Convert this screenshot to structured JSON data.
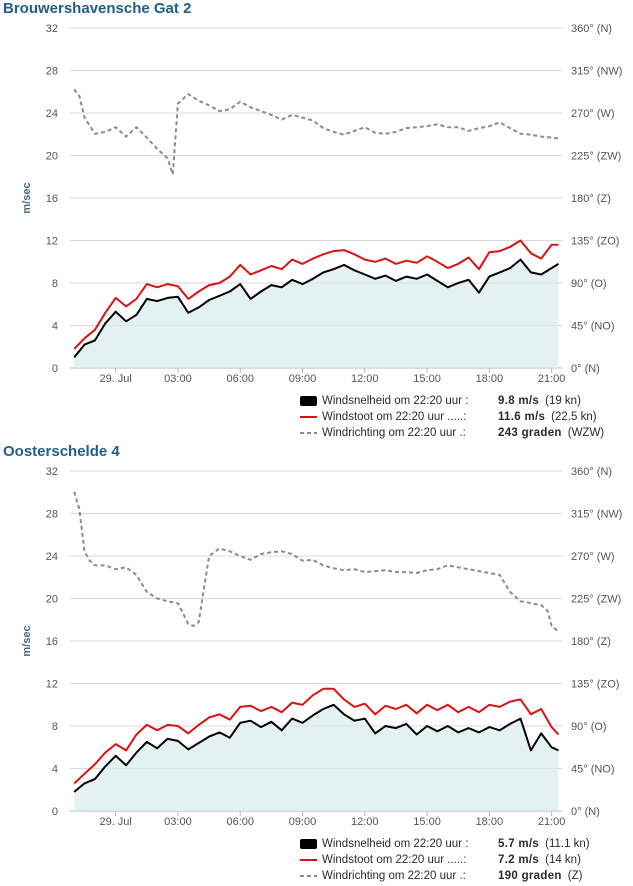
{
  "chart_data": [
    {
      "type": "line",
      "title": "Brouwershavensche Gat 2",
      "ylabel": "m/sec",
      "ylim": [
        0,
        32
      ],
      "yticks": [
        "0",
        "4",
        "8",
        "12",
        "16",
        "20",
        "24",
        "28",
        "32"
      ],
      "y2lim": [
        0,
        360
      ],
      "y2ticks": [
        "0° (N)",
        "45° (NO)",
        "90° (O)",
        "135° (ZO)",
        "180° (Z)",
        "225° (ZW)",
        "270° (W)",
        "315° (NW)",
        "360° (N)"
      ],
      "xlim": [
        -1.2,
        22.5
      ],
      "xticks": [
        {
          "x": 1,
          "label": "29. Jul"
        },
        {
          "x": 4,
          "label": "03:00"
        },
        {
          "x": 7,
          "label": "06:00"
        },
        {
          "x": 10,
          "label": "09:00"
        },
        {
          "x": 13,
          "label": "12:00"
        },
        {
          "x": 16,
          "label": "15:00"
        },
        {
          "x": 19,
          "label": "18:00"
        },
        {
          "x": 22,
          "label": "21:00"
        }
      ],
      "grid": true,
      "series": [
        {
          "name": "Windsnelheid",
          "axis": "y",
          "color": "#000000",
          "dash": "none",
          "area": true,
          "x": [
            -1,
            -0.5,
            0,
            0.5,
            1,
            1.5,
            2,
            2.5,
            3,
            3.5,
            4,
            4.5,
            5,
            5.5,
            6,
            6.5,
            7,
            7.5,
            8,
            8.5,
            9,
            9.5,
            10,
            10.5,
            11,
            11.5,
            12,
            12.5,
            13,
            13.5,
            14,
            14.5,
            15,
            15.5,
            16,
            16.5,
            17,
            17.5,
            18,
            18.5,
            19,
            19.5,
            20,
            20.5,
            21,
            21.5,
            22,
            22.33
          ],
          "y": [
            1.0,
            2.2,
            2.6,
            4.2,
            5.3,
            4.4,
            5.0,
            6.5,
            6.3,
            6.6,
            6.7,
            5.2,
            5.7,
            6.4,
            6.8,
            7.2,
            7.9,
            6.5,
            7.2,
            7.8,
            7.6,
            8.3,
            7.9,
            8.4,
            9.0,
            9.3,
            9.7,
            9.2,
            8.8,
            8.4,
            8.7,
            8.2,
            8.6,
            8.4,
            8.8,
            8.2,
            7.6,
            8.0,
            8.3,
            7.1,
            8.6,
            9.0,
            9.4,
            10.2,
            9.0,
            8.8,
            9.4,
            9.8
          ]
        },
        {
          "name": "Windstoot",
          "axis": "y",
          "color": "#dd1111",
          "dash": "none",
          "area": false,
          "x": [
            -1,
            -0.5,
            0,
            0.5,
            1,
            1.5,
            2,
            2.5,
            3,
            3.5,
            4,
            4.5,
            5,
            5.5,
            6,
            6.5,
            7,
            7.5,
            8,
            8.5,
            9,
            9.5,
            10,
            10.5,
            11,
            11.5,
            12,
            12.5,
            13,
            13.5,
            14,
            14.5,
            15,
            15.5,
            16,
            16.5,
            17,
            17.5,
            18,
            18.5,
            19,
            19.5,
            20,
            20.5,
            21,
            21.5,
            22,
            22.33
          ],
          "y": [
            1.8,
            2.8,
            3.6,
            5.2,
            6.6,
            5.8,
            6.5,
            7.9,
            7.6,
            7.9,
            7.7,
            6.5,
            7.2,
            7.8,
            8.0,
            8.6,
            9.7,
            8.8,
            9.2,
            9.6,
            9.3,
            10.2,
            9.8,
            10.3,
            10.7,
            11.0,
            11.1,
            10.7,
            10.2,
            10.0,
            10.3,
            9.8,
            10.1,
            9.9,
            10.5,
            10.0,
            9.4,
            9.8,
            10.4,
            9.3,
            10.9,
            11.0,
            11.4,
            12.0,
            10.8,
            10.3,
            11.6,
            11.6
          ]
        },
        {
          "name": "Windrichting",
          "axis": "y2",
          "color": "#8c8c8c",
          "dash": "4,3",
          "area": false,
          "x": [
            -1,
            -0.75,
            -0.5,
            0,
            0.5,
            1,
            1.5,
            2,
            2.5,
            3,
            3.5,
            3.75,
            4,
            4.25,
            4.5,
            5,
            5.5,
            6,
            6.5,
            7,
            7.5,
            8,
            8.5,
            9,
            9.5,
            10,
            10.5,
            11,
            11.5,
            12,
            12.5,
            13,
            13.5,
            14,
            14.5,
            15,
            15.5,
            16,
            16.5,
            17,
            17.5,
            18,
            18.5,
            19,
            19.5,
            20,
            20.5,
            21,
            21.5,
            22,
            22.33
          ],
          "y": [
            295,
            288,
            265,
            248,
            250,
            255,
            245,
            255,
            244,
            232,
            222,
            205,
            280,
            285,
            290,
            283,
            278,
            272,
            274,
            282,
            276,
            272,
            268,
            263,
            268,
            265,
            262,
            254,
            250,
            247,
            251,
            255,
            249,
            248,
            250,
            254,
            255,
            256,
            258,
            255,
            255,
            251,
            254,
            256,
            260,
            254,
            248,
            247,
            245,
            244,
            243
          ]
        }
      ],
      "legend": [
        {
          "label": "Windsnelheid om 22:20 uur :",
          "value": "9.8 m/s",
          "extra": "(19 kn)"
        },
        {
          "label": "Windstoot om 22:20 uur .....:",
          "value": "11.6 m/s",
          "extra": "(22.5 kn)"
        },
        {
          "label": "Windrichting om 22:20 uur .:",
          "value": "243 graden",
          "extra": "(WZW)"
        }
      ]
    },
    {
      "type": "line",
      "title": "Oosterschelde 4",
      "ylabel": "m/sec",
      "ylim": [
        0,
        32
      ],
      "yticks": [
        "0",
        "4",
        "8",
        "12",
        "16",
        "20",
        "24",
        "28",
        "32"
      ],
      "y2lim": [
        0,
        360
      ],
      "y2ticks": [
        "0° (N)",
        "45° (NO)",
        "90° (O)",
        "135° (ZO)",
        "180° (Z)",
        "225° (ZW)",
        "270° (W)",
        "315° (NW)",
        "360° (N)"
      ],
      "xlim": [
        -1.2,
        22.5
      ],
      "xticks": [
        {
          "x": 1,
          "label": "29. Jul"
        },
        {
          "x": 4,
          "label": "03:00"
        },
        {
          "x": 7,
          "label": "06:00"
        },
        {
          "x": 10,
          "label": "09:00"
        },
        {
          "x": 13,
          "label": "12:00"
        },
        {
          "x": 16,
          "label": "15:00"
        },
        {
          "x": 19,
          "label": "18:00"
        },
        {
          "x": 22,
          "label": "21:00"
        }
      ],
      "grid": true,
      "series": [
        {
          "name": "Windsnelheid",
          "axis": "y",
          "color": "#000000",
          "dash": "none",
          "area": true,
          "x": [
            -1,
            -0.5,
            0,
            0.5,
            1,
            1.5,
            2,
            2.5,
            3,
            3.5,
            4,
            4.5,
            5,
            5.5,
            6,
            6.5,
            7,
            7.5,
            8,
            8.5,
            9,
            9.5,
            10,
            10.5,
            11,
            11.5,
            12,
            12.5,
            13,
            13.5,
            14,
            14.5,
            15,
            15.5,
            16,
            16.5,
            17,
            17.5,
            18,
            18.5,
            19,
            19.5,
            20,
            20.5,
            21,
            21.5,
            22,
            22.33
          ],
          "y": [
            1.8,
            2.6,
            3.0,
            4.2,
            5.2,
            4.3,
            5.5,
            6.5,
            5.9,
            6.8,
            6.6,
            5.8,
            6.4,
            7.0,
            7.4,
            6.9,
            8.3,
            8.5,
            7.9,
            8.4,
            7.6,
            8.7,
            8.3,
            9.0,
            9.6,
            10.0,
            9.1,
            8.5,
            8.7,
            7.3,
            8.0,
            7.8,
            8.2,
            7.2,
            8.0,
            7.5,
            8.0,
            7.4,
            7.8,
            7.4,
            7.9,
            7.6,
            8.2,
            8.7,
            5.7,
            7.3,
            6.0,
            5.7
          ]
        },
        {
          "name": "Windstoot",
          "axis": "y",
          "color": "#dd1111",
          "dash": "none",
          "area": false,
          "x": [
            -1,
            -0.5,
            0,
            0.5,
            1,
            1.5,
            2,
            2.5,
            3,
            3.5,
            4,
            4.5,
            5,
            5.5,
            6,
            6.5,
            7,
            7.5,
            8,
            8.5,
            9,
            9.5,
            10,
            10.5,
            11,
            11.5,
            12,
            12.5,
            13,
            13.5,
            14,
            14.5,
            15,
            15.5,
            16,
            16.5,
            17,
            17.5,
            18,
            18.5,
            19,
            19.5,
            20,
            20.5,
            21,
            21.5,
            22,
            22.33
          ],
          "y": [
            2.6,
            3.5,
            4.4,
            5.5,
            6.3,
            5.7,
            7.2,
            8.1,
            7.6,
            8.1,
            8.0,
            7.3,
            8.1,
            8.8,
            9.1,
            8.6,
            9.8,
            9.9,
            9.4,
            9.8,
            9.3,
            10.2,
            10.0,
            10.9,
            11.5,
            11.5,
            10.5,
            9.8,
            10.1,
            9.1,
            9.9,
            9.6,
            10.0,
            9.2,
            10.0,
            9.5,
            10.0,
            9.3,
            9.8,
            9.3,
            10.0,
            9.8,
            10.3,
            10.5,
            9.1,
            9.6,
            7.9,
            7.2
          ]
        },
        {
          "name": "Windrichting",
          "axis": "y2",
          "color": "#8c8c8c",
          "dash": "4,3",
          "area": false,
          "x": [
            -1,
            -0.75,
            -0.5,
            -0.25,
            0,
            0.5,
            1,
            1.5,
            2,
            2.5,
            3,
            3.5,
            4,
            4.5,
            4.75,
            5,
            5.5,
            6,
            6.5,
            7,
            7.5,
            8,
            8.5,
            9,
            9.5,
            10,
            10.5,
            11,
            11.5,
            12,
            12.5,
            13,
            13.5,
            14,
            14.5,
            15,
            15.5,
            16,
            16.5,
            17,
            17.5,
            18,
            18.5,
            19,
            19.5,
            20,
            20.5,
            21,
            21.5,
            21.8,
            22,
            22.33
          ],
          "y": [
            338,
            320,
            275,
            265,
            260,
            260,
            256,
            258,
            250,
            232,
            225,
            222,
            220,
            198,
            196,
            200,
            270,
            278,
            275,
            270,
            266,
            272,
            274,
            275,
            272,
            265,
            266,
            260,
            257,
            255,
            256,
            253,
            254,
            255,
            253,
            253,
            252,
            255,
            256,
            260,
            258,
            256,
            254,
            252,
            250,
            232,
            222,
            220,
            218,
            212,
            196,
            190
          ]
        }
      ],
      "legend": [
        {
          "label": "Windsnelheid om 22:20 uur :",
          "value": "5.7 m/s",
          "extra": "(11.1 kn)"
        },
        {
          "label": "Windstoot om 22:20 uur .....:",
          "value": "7.2 m/s",
          "extra": "(14 kn)"
        },
        {
          "label": "Windrichting om 22:20 uur .:",
          "value": "190 graden",
          "extra": "(Z)"
        }
      ]
    }
  ]
}
